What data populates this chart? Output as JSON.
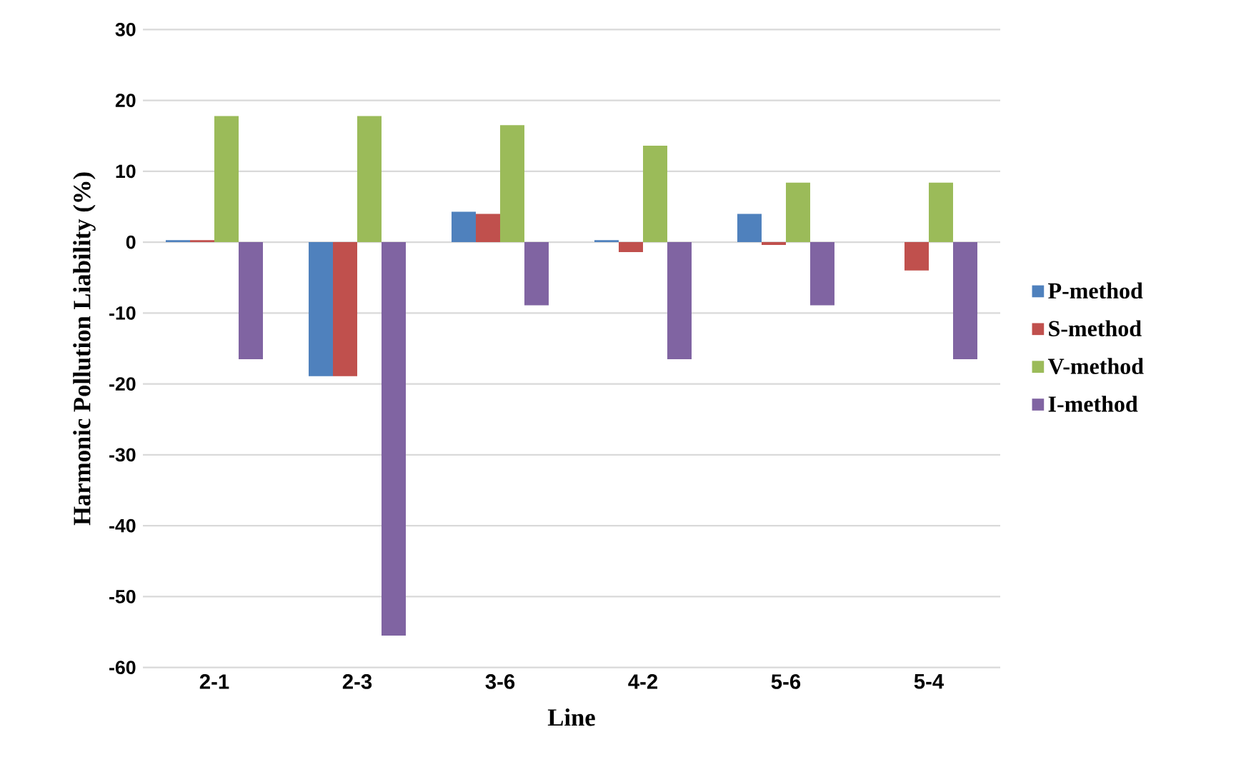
{
  "chart_data": {
    "type": "bar",
    "xlabel": "Line",
    "ylabel": "Harmonic Pollution Liability (%)",
    "categories": [
      "2-1",
      "2-3",
      "3-6",
      "4-2",
      "5-6",
      "5-4"
    ],
    "series": [
      {
        "name": "P-method",
        "color": "#4f81bd",
        "values": [
          0.3,
          -18.9,
          4.3,
          0.3,
          4.0,
          0
        ]
      },
      {
        "name": "S-method",
        "color": "#c0504d",
        "values": [
          0.3,
          -18.9,
          4.0,
          -1.4,
          -0.4,
          -4.0
        ]
      },
      {
        "name": "V-method",
        "color": "#9bbb59",
        "values": [
          17.8,
          17.8,
          16.5,
          13.6,
          8.4,
          8.4
        ]
      },
      {
        "name": "I-method",
        "color": "#8064a2",
        "values": [
          -16.5,
          -55.5,
          -8.9,
          -16.5,
          -8.9,
          -16.5
        ]
      }
    ],
    "ylim": [
      -60,
      30
    ],
    "yticks": [
      -60,
      -50,
      -40,
      -30,
      -20,
      -10,
      0,
      10,
      20,
      30
    ],
    "grid": "y",
    "legend": "right"
  }
}
